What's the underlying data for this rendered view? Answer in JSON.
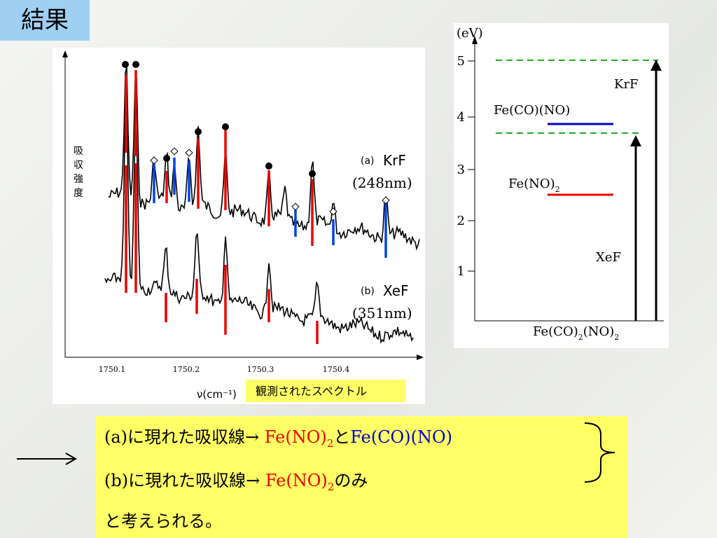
{
  "title": "結果",
  "spectrum": {
    "y_label": [
      "吸",
      "収",
      "強",
      "度"
    ],
    "x_label": "ν(cm⁻¹)",
    "xticks": [
      "1750.1",
      "1750.2",
      "1750.3",
      "1750.4"
    ],
    "traces": [
      {
        "label": "(a)",
        "laser": "KrF",
        "wavelength": "(248nm)"
      },
      {
        "label": "(b)",
        "laser": "XeF",
        "wavelength": "(351nm)"
      }
    ],
    "caption": "観測されたスペクトル"
  },
  "energy": {
    "unit": "(eV)",
    "yticks": [
      "1",
      "2",
      "3",
      "4",
      "5"
    ],
    "levels": [
      {
        "label": "Fe(CO)(NO)"
      },
      {
        "label": "Fe(NO)",
        "sub": "2"
      }
    ],
    "ground": [
      "Fe(CO)",
      "2",
      "(NO)",
      "2"
    ],
    "arrows": [
      "KrF",
      "XeF"
    ]
  },
  "conclusion": {
    "line1": [
      "(a)に現れた吸収線→ ",
      "Fe(NO)",
      "2",
      "と",
      "Fe(CO)(NO)"
    ],
    "line2": [
      "(b)に現れた吸収線→ ",
      "Fe(NO)",
      "2",
      "のみ"
    ],
    "line3": "と考えられる。"
  }
}
